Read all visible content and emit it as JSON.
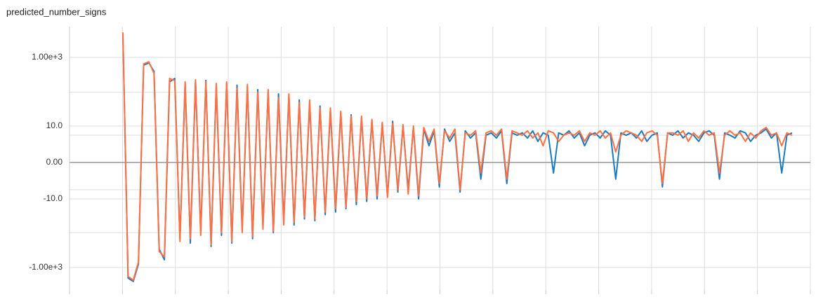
{
  "chart_data": {
    "type": "line",
    "title": "predicted_number_signs",
    "yscale": "symlog",
    "ylim": [
      -4400,
      7600
    ],
    "yticks": [
      {
        "value": 1000,
        "label": "1.00e+3"
      },
      {
        "value": 10,
        "label": "10.0"
      },
      {
        "value": 0,
        "label": "0.00"
      },
      {
        "value": -10,
        "label": "-10.0"
      },
      {
        "value": -1000,
        "label": "-1.00e+3"
      }
    ],
    "y_minor_gridlines": [
      100,
      5,
      -5,
      -100
    ],
    "grid": true,
    "series": [
      {
        "color": "#1b7bbd",
        "values": [
          5000,
          -2000,
          -2500,
          -800,
          600,
          700,
          400,
          -300,
          -600,
          200,
          250,
          -150,
          180,
          -200,
          200,
          -100,
          220,
          -250,
          150,
          -120,
          180,
          -200,
          160,
          -80,
          150,
          -150,
          120,
          -60,
          100,
          -100,
          90,
          -50,
          80,
          -60,
          60,
          -40,
          50,
          -45,
          40,
          -30,
          30,
          -25,
          25,
          -20,
          22,
          -15,
          18,
          -12,
          15,
          -10,
          12,
          -8,
          14,
          -6,
          10,
          -5,
          9,
          -10,
          8,
          2,
          7,
          -4,
          8,
          3,
          6,
          -6,
          7,
          4,
          6,
          -2,
          5,
          6,
          4,
          7,
          -3,
          6,
          5,
          6,
          4,
          7,
          3,
          6,
          5,
          -1,
          6,
          5,
          7,
          4,
          6,
          2,
          5,
          6,
          4,
          7,
          5,
          -2,
          6,
          5,
          6,
          4,
          7,
          3,
          5,
          6,
          -4,
          6,
          5,
          7,
          4,
          6,
          5,
          3,
          6,
          7,
          5,
          -2,
          6,
          5,
          4,
          7,
          6,
          3,
          5,
          6,
          8,
          4,
          6,
          -1,
          5,
          6
        ]
      },
      {
        "color": "#ff7043",
        "values": [
          5200,
          -1800,
          -2300,
          -700,
          650,
          750,
          350,
          -350,
          -500,
          250,
          220,
          -180,
          200,
          -150,
          230,
          -120,
          200,
          -220,
          180,
          -100,
          200,
          -180,
          130,
          -100,
          170,
          -130,
          100,
          -80,
          120,
          -90,
          70,
          -60,
          90,
          -50,
          50,
          -35,
          60,
          -40,
          35,
          -25,
          35,
          -20,
          28,
          -18,
          20,
          -12,
          20,
          -10,
          16,
          -8,
          13,
          -9,
          12,
          -5,
          11,
          -7,
          10,
          -8,
          9,
          3,
          8,
          -3,
          7,
          4,
          8,
          -5,
          6,
          5,
          7,
          -1,
          6,
          7,
          5,
          8,
          -2,
          7,
          6,
          5,
          7,
          4,
          6,
          2,
          7,
          6,
          3,
          5,
          6,
          5,
          7,
          3,
          6,
          5,
          7,
          4,
          6,
          1,
          5,
          7,
          6,
          5,
          3,
          6,
          7,
          5,
          -3,
          6,
          6,
          5,
          7,
          3,
          6,
          4,
          7,
          5,
          6,
          -1,
          5,
          7,
          5,
          6,
          3,
          6,
          4,
          7,
          9,
          5,
          6,
          2,
          6,
          5
        ]
      }
    ]
  }
}
